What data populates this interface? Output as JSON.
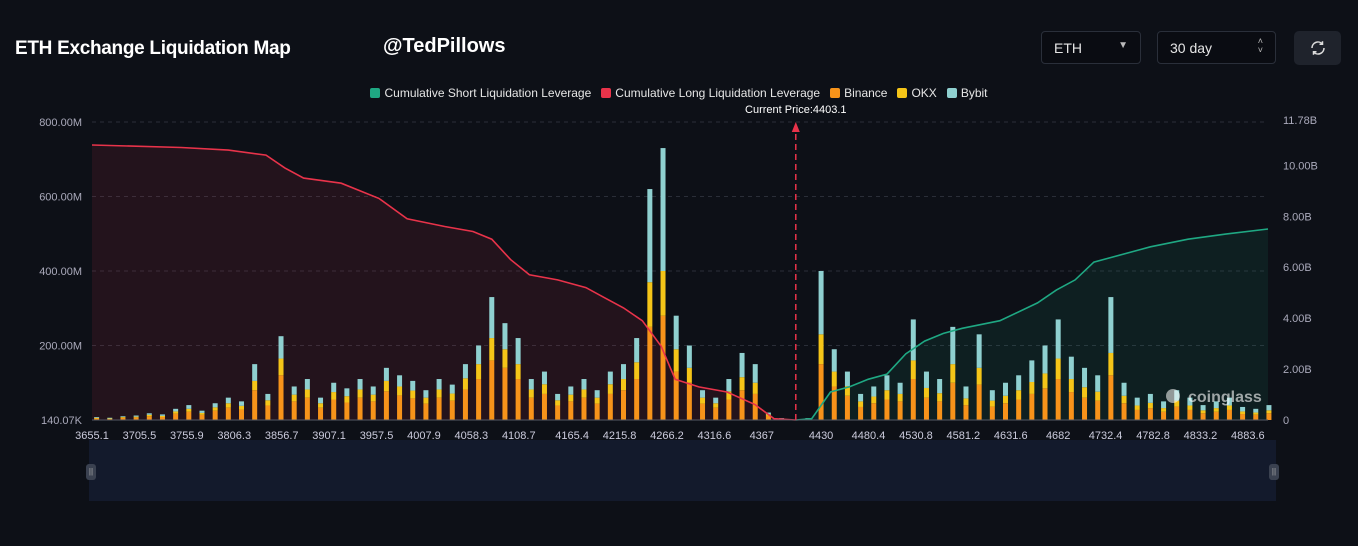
{
  "header": {
    "title": "ETH Exchange Liquidation Map",
    "watermark_handle": "@TedPillows",
    "coin_select": "ETH",
    "range_select": "30 day",
    "refresh_icon": "refresh-icon"
  },
  "colors": {
    "short": "#1fa883",
    "long": "#e8334a",
    "binance": "#f7931a",
    "okx": "#f5c518",
    "bybit": "#8fd0d0",
    "background": "#0d1017"
  },
  "chart_data": {
    "type": "bar",
    "legend": [
      "Cumulative Short Liquidation Leverage",
      "Cumulative Long Liquidation Leverage",
      "Binance",
      "OKX",
      "Bybit"
    ],
    "legend_placement": "top-center",
    "current_price_label": "Current Price:4403.1",
    "current_price": 4403.1,
    "x_tick_labels": [
      "3655.1",
      "3705.5",
      "3755.9",
      "3806.3",
      "3856.7",
      "3907.1",
      "3957.5",
      "4007.9",
      "4058.3",
      "4108.7",
      "4165.4",
      "4215.8",
      "4266.2",
      "4316.6",
      "4367",
      "4430",
      "4480.4",
      "4530.8",
      "4581.2",
      "4631.6",
      "4682",
      "4732.4",
      "4782.8",
      "4833.2",
      "4883.6"
    ],
    "y_left_tick_labels": [
      "140.07K",
      "200.00M",
      "400.00M",
      "600.00M",
      "800.00M"
    ],
    "y_right_tick_labels": [
      "0",
      "2.00B",
      "4.00B",
      "6.00B",
      "8.00B",
      "10.00B",
      "11.78B"
    ],
    "y_left_range_M": [
      0,
      800
    ],
    "y_right_range_B": [
      0,
      11.78
    ],
    "x_range": [
      3655.1,
      4905
    ],
    "grid": true,
    "watermark": "coinglass",
    "bars_price_start": 3660,
    "bars_price_step": 14,
    "series": [
      {
        "name": "Binance",
        "values": [
          4,
          3,
          6,
          7,
          10,
          8,
          17,
          22,
          14,
          25,
          33,
          28,
          80,
          39,
          120,
          50,
          60,
          33,
          55,
          47,
          60,
          50,
          77,
          66,
          58,
          44,
          60,
          52,
          82,
          110,
          160,
          140,
          110,
          60,
          70,
          39,
          50,
          60,
          44,
          70,
          80,
          110,
          250,
          280,
          130,
          100,
          44,
          33,
          55,
          80,
          70,
          11,
          3,
          0,
          3,
          150,
          90,
          65,
          35,
          45,
          55,
          50,
          110,
          60,
          50,
          100,
          40,
          95,
          36,
          45,
          55,
          70,
          85,
          110,
          75,
          60,
          52,
          120,
          45,
          27,
          32,
          22,
          36,
          27,
          18,
          22,
          27,
          16,
          14,
          18
        ]
      },
      {
        "name": "OKX",
        "values": [
          2,
          1,
          2,
          2,
          4,
          3,
          6,
          8,
          5,
          9,
          12,
          10,
          25,
          14,
          45,
          18,
          22,
          12,
          20,
          17,
          22,
          18,
          28,
          24,
          21,
          16,
          22,
          19,
          30,
          40,
          60,
          50,
          40,
          22,
          26,
          14,
          18,
          22,
          16,
          26,
          30,
          45,
          120,
          120,
          60,
          40,
          16,
          12,
          22,
          35,
          30,
          4,
          1,
          0,
          1,
          80,
          40,
          26,
          15,
          18,
          25,
          20,
          50,
          26,
          22,
          50,
          18,
          45,
          16,
          20,
          25,
          32,
          40,
          55,
          35,
          28,
          24,
          60,
          20,
          12,
          14,
          10,
          16,
          12,
          8,
          10,
          12,
          7,
          6,
          8
        ]
      },
      {
        "name": "Bybit",
        "values": [
          2,
          2,
          2,
          3,
          4,
          4,
          7,
          10,
          6,
          11,
          15,
          12,
          45,
          17,
          60,
          22,
          28,
          15,
          25,
          21,
          28,
          22,
          35,
          30,
          26,
          20,
          28,
          24,
          38,
          50,
          110,
          70,
          70,
          28,
          34,
          17,
          22,
          28,
          20,
          34,
          40,
          65,
          250,
          330,
          90,
          60,
          20,
          15,
          33,
          65,
          50,
          5,
          1,
          0,
          1,
          170,
          60,
          39,
          20,
          27,
          40,
          30,
          110,
          44,
          38,
          100,
          32,
          90,
          28,
          35,
          40,
          58,
          75,
          105,
          60,
          52,
          44,
          150,
          35,
          21,
          24,
          18,
          28,
          21,
          14,
          18,
          21,
          12,
          10,
          14
        ]
      }
    ],
    "cumulative_long_B": [
      [
        3655.1,
        10.8
      ],
      [
        3750,
        10.7
      ],
      [
        3800,
        10.6
      ],
      [
        3840,
        10.4
      ],
      [
        3860,
        9.9
      ],
      [
        3880,
        9.5
      ],
      [
        3920,
        9.3
      ],
      [
        3960,
        8.7
      ],
      [
        3990,
        7.9
      ],
      [
        4030,
        7.6
      ],
      [
        4060,
        7.4
      ],
      [
        4080,
        7.1
      ],
      [
        4100,
        6.3
      ],
      [
        4120,
        5.7
      ],
      [
        4150,
        5.5
      ],
      [
        4180,
        5.2
      ],
      [
        4200,
        4.8
      ],
      [
        4220,
        4.4
      ],
      [
        4240,
        3.9
      ],
      [
        4260,
        2.9
      ],
      [
        4275,
        1.6
      ],
      [
        4300,
        1.3
      ],
      [
        4330,
        1.1
      ],
      [
        4360,
        0.6
      ],
      [
        4380,
        0.05
      ],
      [
        4403.1,
        0
      ]
    ],
    "cumulative_short_B": [
      [
        4403.1,
        0
      ],
      [
        4420,
        0.05
      ],
      [
        4440,
        1.1
      ],
      [
        4460,
        1.3
      ],
      [
        4480,
        1.6
      ],
      [
        4500,
        1.8
      ],
      [
        4520,
        2.6
      ],
      [
        4540,
        3.1
      ],
      [
        4560,
        3.4
      ],
      [
        4580,
        3.6
      ],
      [
        4620,
        3.9
      ],
      [
        4660,
        4.6
      ],
      [
        4680,
        5.1
      ],
      [
        4700,
        5.5
      ],
      [
        4720,
        6.2
      ],
      [
        4740,
        6.4
      ],
      [
        4780,
        6.8
      ],
      [
        4820,
        7.1
      ],
      [
        4860,
        7.3
      ],
      [
        4905,
        7.5
      ]
    ]
  }
}
